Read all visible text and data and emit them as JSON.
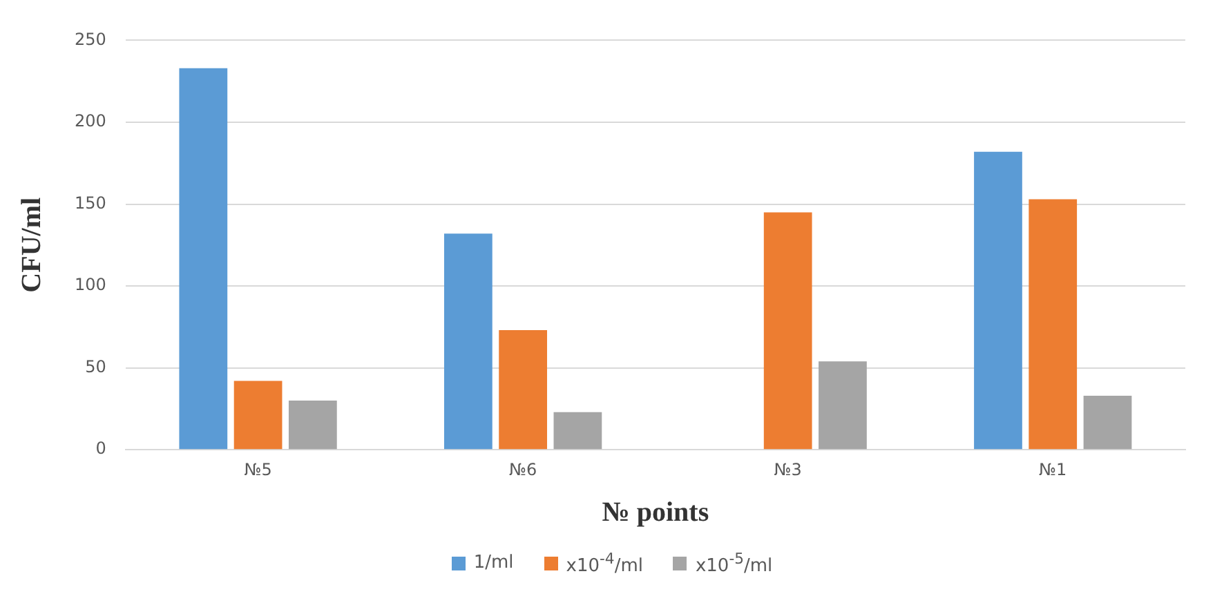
{
  "chart_data": {
    "type": "bar",
    "xlabel": "№ points",
    "ylabel": "CFU/ml",
    "categories": [
      "№5",
      "№6",
      "№3",
      "№1"
    ],
    "series": [
      {
        "name": "1/ml",
        "color": "#5b9bd5",
        "values": [
          233,
          132,
          null,
          182
        ]
      },
      {
        "name": "x10$^{-4}$/ml",
        "color": "#ed7d31",
        "values": [
          42,
          73,
          145,
          153
        ]
      },
      {
        "name": "x10$^{-5}$/ml",
        "color": "#a5a5a5",
        "values": [
          30,
          23,
          54,
          33
        ]
      }
    ],
    "ylim": [
      0,
      250
    ],
    "yticks": [
      0,
      50,
      100,
      150,
      200,
      250
    ],
    "grid": "y",
    "legend": "bottom"
  }
}
